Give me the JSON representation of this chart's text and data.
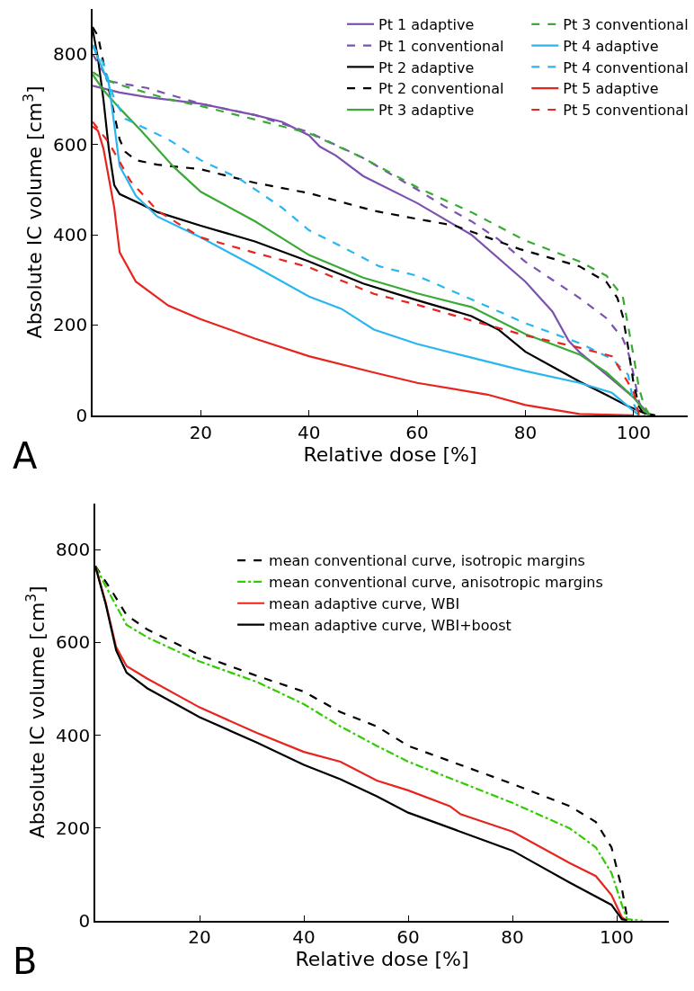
{
  "chart_data": [
    {
      "type": "line",
      "xlabel": "Relative dose [%]",
      "ylabel": "Absolute IC volume [cm$^{3}$]",
      "xlim": [
        0,
        110
      ],
      "ylim": [
        0,
        900
      ],
      "xticks": [
        20,
        40,
        60,
        80,
        100
      ],
      "yticks": [
        0,
        200,
        400,
        600,
        800
      ],
      "legend": "top right",
      "annotations": [
        "A"
      ],
      "series": [
        {
          "name": "Pt 1 adaptive",
          "color": "#7b52ae",
          "line_style": "solid",
          "x": [
            0,
            5,
            10,
            20,
            30,
            35,
            40,
            42,
            45,
            50,
            60,
            70,
            80,
            85,
            88,
            90,
            95,
            100,
            103
          ],
          "values": [
            730,
            715,
            705,
            690,
            665,
            650,
            620,
            595,
            575,
            530,
            470,
            400,
            296,
            230,
            165,
            140,
            90,
            40,
            0
          ]
        },
        {
          "name": "Pt 1 conventional",
          "color": "#7b52ae",
          "line_style": "dashed",
          "x": [
            0,
            3,
            10,
            20,
            30,
            40,
            50,
            60,
            65,
            70,
            75,
            80,
            85,
            90,
            95,
            98,
            99,
            100,
            101,
            102
          ],
          "values": [
            800,
            740,
            725,
            690,
            665,
            627,
            570,
            500,
            463,
            430,
            390,
            340,
            300,
            260,
            215,
            170,
            140,
            90,
            30,
            0
          ]
        },
        {
          "name": "Pt 2 adaptive",
          "color": "#000000",
          "line_style": "solid",
          "x": [
            0,
            1,
            2,
            3,
            4,
            5,
            8,
            12,
            20,
            30,
            40,
            50,
            60,
            70,
            75,
            80,
            85,
            90,
            95,
            99,
            102,
            104
          ],
          "values": [
            855,
            790,
            700,
            590,
            510,
            490,
            473,
            450,
            420,
            385,
            341,
            292,
            255,
            220,
            190,
            141,
            108,
            75,
            45,
            20,
            5,
            0
          ]
        },
        {
          "name": "Pt 2 conventional",
          "color": "#000000",
          "line_style": "dashed",
          "x": [
            0,
            1,
            3,
            5,
            6,
            8,
            12,
            20,
            30,
            40,
            52,
            60,
            67,
            79,
            90,
            95,
            97,
            98,
            99,
            100,
            101,
            102
          ],
          "values": [
            860,
            840,
            722,
            611,
            584,
            565,
            555,
            545,
            515,
            492,
            453,
            435,
            420,
            368,
            330,
            295,
            260,
            220,
            150,
            70,
            20,
            0
          ]
        },
        {
          "name": "Pt 3 adaptive",
          "color": "#3aaa35",
          "line_style": "solid",
          "x": [
            0,
            2,
            5,
            9,
            15,
            20,
            30,
            40,
            50,
            60,
            70,
            80,
            90,
            95,
            100,
            102,
            103
          ],
          "values": [
            755,
            720,
            680,
            630,
            550,
            495,
            430,
            355,
            305,
            270,
            240,
            180,
            135,
            95,
            40,
            10,
            0
          ]
        },
        {
          "name": "Pt 3 conventional",
          "color": "#3aaa35",
          "line_style": "dashed",
          "x": [
            0,
            2,
            5,
            14,
            20,
            30,
            40,
            50,
            60,
            70,
            80,
            90,
            95,
            98,
            100,
            101,
            102,
            103
          ],
          "values": [
            760,
            745,
            732,
            700,
            685,
            655,
            625,
            570,
            505,
            450,
            387,
            341,
            309,
            263,
            131,
            60,
            20,
            0
          ]
        },
        {
          "name": "Pt 4 adaptive",
          "color": "#29b6f0",
          "line_style": "solid",
          "x": [
            0,
            3,
            4,
            5,
            8,
            12,
            20,
            30,
            40,
            46,
            52,
            60,
            70,
            80,
            90,
            96,
            100,
            101
          ],
          "values": [
            820,
            735,
            644,
            552,
            486,
            440,
            394,
            330,
            263,
            236,
            190,
            158,
            128,
            98,
            72,
            50,
            10,
            0
          ]
        },
        {
          "name": "Pt 4 conventional",
          "color": "#29b6f0",
          "line_style": "dashed",
          "x": [
            0,
            2,
            4,
            6,
            14,
            20,
            27,
            35,
            40,
            46,
            53,
            60,
            70,
            80,
            90,
            96,
            99,
            100,
            101
          ],
          "values": [
            820,
            780,
            700,
            657,
            611,
            565,
            525,
            460,
            410,
            374,
            330,
            309,
            257,
            204,
            160,
            125,
            90,
            26,
            0
          ]
        },
        {
          "name": "Pt 5 adaptive",
          "color": "#e8241e",
          "line_style": "solid",
          "x": [
            0,
            1,
            2,
            4,
            5,
            8,
            14,
            20,
            30,
            40,
            52,
            60,
            73,
            80,
            90,
            100
          ],
          "values": [
            640,
            630,
            591,
            460,
            361,
            296,
            243,
            213,
            170,
            131,
            95,
            72,
            46,
            23,
            3,
            0
          ]
        },
        {
          "name": "Pt 5 conventional",
          "color": "#e8241e",
          "line_style": "dashed",
          "x": [
            0,
            3,
            7,
            12,
            20,
            30,
            40,
            52,
            60,
            70,
            80,
            90,
            96,
            98,
            100,
            101
          ],
          "values": [
            650,
            604,
            519,
            453,
            394,
            360,
            328,
            269,
            245,
            210,
            177,
            150,
            131,
            92,
            52,
            0
          ]
        }
      ]
    },
    {
      "type": "line",
      "xlabel": "Relative dose [%]",
      "ylabel": "Absolute IC volume [cm$^{3}$]",
      "xlim": [
        0,
        110
      ],
      "ylim": [
        0,
        900
      ],
      "xticks": [
        20,
        40,
        60,
        80,
        100
      ],
      "yticks": [
        0,
        200,
        400,
        600,
        800
      ],
      "legend": "top right",
      "annotations": [
        "B"
      ],
      "series": [
        {
          "name": "mean conventional curve, isotropic margins",
          "color": "#000000",
          "line_style": "dashed",
          "x": [
            0,
            3,
            6,
            10,
            20,
            31,
            40,
            47,
            54,
            60,
            80,
            91,
            96,
            99,
            101,
            102,
            103
          ],
          "values": [
            765,
            714,
            659,
            628,
            573,
            528,
            494,
            450,
            419,
            377,
            295,
            247,
            213,
            158,
            69,
            7,
            0
          ]
        },
        {
          "name": "mean conventional curve, anisotropic margins",
          "color": "#33cc00",
          "line_style": "dashdot",
          "x": [
            0,
            3,
            6,
            10,
            20,
            31,
            40,
            47,
            54,
            60,
            80,
            91,
            96,
            99,
            101,
            102,
            105
          ],
          "values": [
            765,
            700,
            638,
            611,
            559,
            515,
            467,
            419,
            377,
            343,
            254,
            199,
            158,
            103,
            34,
            3,
            0
          ]
        },
        {
          "name": "mean adaptive curve, WBI",
          "color": "#e8241e",
          "line_style": "solid",
          "x": [
            0,
            2,
            4,
            6,
            10,
            20,
            31,
            40,
            47,
            54,
            60,
            68,
            70,
            80,
            91,
            96,
            99,
            101,
            102
          ],
          "values": [
            765,
            686,
            590,
            549,
            522,
            460,
            405,
            364,
            343,
            302,
            281,
            247,
            230,
            192,
            124,
            96,
            55,
            7,
            0
          ]
        },
        {
          "name": "mean adaptive curve, WBI+boost",
          "color": "#000000",
          "line_style": "solid",
          "x": [
            0,
            2,
            4,
            6,
            10,
            20,
            31,
            40,
            47,
            54,
            60,
            80,
            91,
            99,
            101,
            102
          ],
          "values": [
            765,
            683,
            583,
            535,
            501,
            439,
            384,
            336,
            305,
            268,
            233,
            151,
            82,
            34,
            3,
            0
          ]
        }
      ]
    }
  ]
}
